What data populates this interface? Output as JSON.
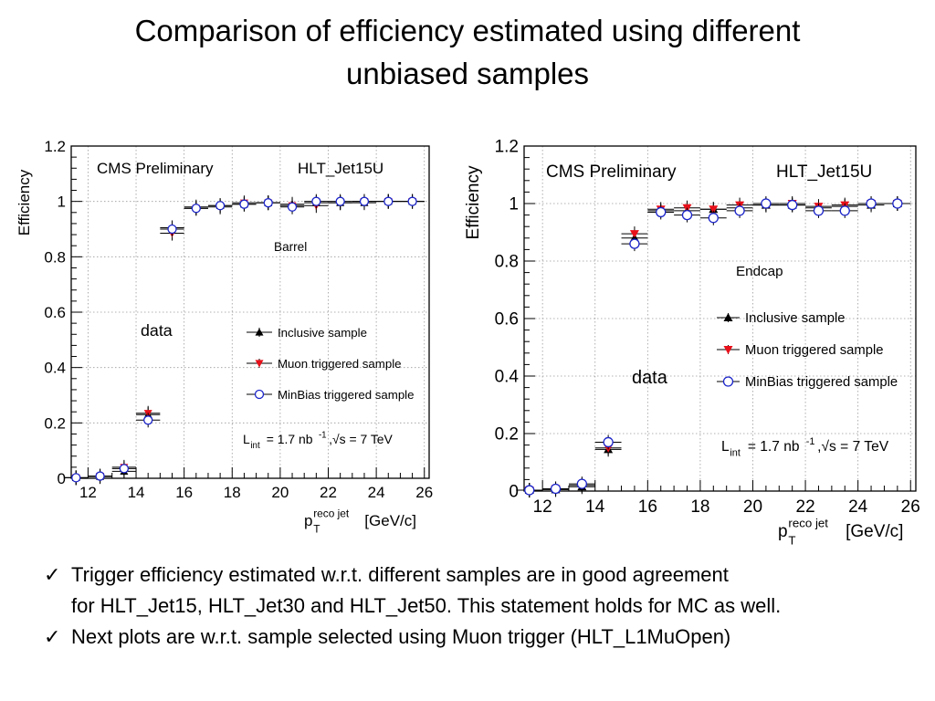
{
  "slide": {
    "title_line1": "Comparison of efficiency estimated using different",
    "title_line2": "unbiased samples",
    "bullets": [
      {
        "check": "✓",
        "lines": [
          "Trigger efficiency estimated w.r.t. different samples are in good agreement",
          "for HLT_Jet15, HLT_Jet30 and HLT_Jet50. This statement holds for MC as well."
        ]
      },
      {
        "check": "✓",
        "lines": [
          "Next plots are w.r.t. sample selected using Muon trigger (HLT_L1MuOpen)"
        ]
      }
    ]
  },
  "colors": {
    "inclusive": "#000000",
    "muon": "#e8101a",
    "minbias": "#1b24c9",
    "grid": "#9a9a9a"
  },
  "chart_data": [
    {
      "type": "scatter",
      "panel": "barrel",
      "ylabel": "Efficiency",
      "xlabel_main": "p",
      "xlabel_sub": "T",
      "xlabel_sup": "reco jet",
      "xlabel_unit": "[GeV/c]",
      "xlim": [
        11.3,
        26.2
      ],
      "ylim": [
        0,
        1.2
      ],
      "xticks": [
        12,
        14,
        16,
        18,
        20,
        22,
        24,
        26
      ],
      "yticks": [
        0,
        0.2,
        0.4,
        0.6,
        0.8,
        1,
        1.2
      ],
      "ytick_labels": [
        "0",
        "0.2",
        "0.4",
        "0.6",
        "0.8",
        "1",
        "1.2"
      ],
      "grid": true,
      "legend_position": "center-right",
      "annotations": {
        "cms": "CMS Preliminary",
        "trigger": "HLT_Jet15U",
        "region": "Barrel",
        "data": "data",
        "lumi_L": "L",
        "lumi_int": "int",
        "lumi_value": "= 1.7 nb",
        "lumi_exp": "-1",
        "lumi_energy": ",√s = 7 TeV"
      },
      "series": [
        {
          "name": "Inclusive sample",
          "marker": "triangle-up",
          "x": [
            11.5,
            12.5,
            13.5,
            14.5,
            15.5,
            16.5,
            17.5,
            18.5,
            19.5,
            20.5,
            21.5,
            22.5,
            23.5,
            24.5,
            25.5
          ],
          "y": [
            0.002,
            0.006,
            0.025,
            0.23,
            0.905,
            0.98,
            0.985,
            0.99,
            0.995,
            0.99,
            0.995,
            0.995,
            0.995,
            1.0,
            1.0
          ]
        },
        {
          "name": "Muon triggered sample",
          "marker": "triangle-down",
          "x": [
            11.5,
            12.5,
            13.5,
            14.5,
            15.5,
            16.5,
            17.5,
            18.5,
            19.5,
            20.5,
            21.5,
            22.5,
            23.5,
            24.5,
            25.5
          ],
          "y": [
            0.002,
            0.008,
            0.04,
            0.235,
            0.885,
            0.975,
            0.98,
            0.995,
            0.995,
            0.985,
            0.985,
            0.995,
            1.0,
            1.0,
            1.0
          ]
        },
        {
          "name": "MinBias triggered sample",
          "marker": "circle-open",
          "x": [
            11.5,
            12.5,
            13.5,
            14.5,
            15.5,
            16.5,
            17.5,
            18.5,
            19.5,
            20.5,
            21.5,
            22.5,
            23.5,
            24.5,
            25.5
          ],
          "y": [
            0.002,
            0.008,
            0.035,
            0.21,
            0.9,
            0.975,
            0.985,
            0.99,
            0.995,
            0.98,
            1.0,
            1.0,
            1.0,
            1.0,
            1.0
          ]
        }
      ]
    },
    {
      "type": "scatter",
      "panel": "endcap",
      "ylabel": "Efficiency",
      "xlabel_main": "p",
      "xlabel_sub": "T",
      "xlabel_sup": "reco jet",
      "xlabel_unit": "[GeV/c]",
      "xlim": [
        11.3,
        26.2
      ],
      "ylim": [
        0,
        1.2
      ],
      "xticks": [
        12,
        14,
        16,
        18,
        20,
        22,
        24,
        26
      ],
      "yticks": [
        0,
        0.2,
        0.4,
        0.6,
        0.8,
        1,
        1.2
      ],
      "ytick_labels": [
        "0",
        "0.2",
        "0.4",
        "0.6",
        "0.8",
        "1",
        "1.2"
      ],
      "grid": true,
      "legend_position": "center-right",
      "annotations": {
        "cms": "CMS Preliminary",
        "trigger": "HLT_Jet15U",
        "region": "Endcap",
        "data": "data",
        "lumi_L": "L",
        "lumi_int": "int",
        "lumi_value": "= 1.7 nb",
        "lumi_exp": "-1",
        "lumi_energy": ",√s = 7 TeV"
      },
      "series": [
        {
          "name": "Inclusive sample",
          "marker": "triangle-up",
          "x": [
            11.5,
            12.5,
            13.5,
            14.5,
            15.5,
            16.5,
            17.5,
            18.5,
            19.5,
            20.5,
            21.5,
            22.5,
            23.5,
            24.5,
            25.5
          ],
          "y": [
            0.003,
            0.005,
            0.015,
            0.145,
            0.88,
            0.975,
            0.975,
            0.98,
            0.985,
            0.995,
            0.995,
            0.985,
            0.99,
            0.995,
            1.0
          ]
        },
        {
          "name": "Muon triggered sample",
          "marker": "triangle-down",
          "x": [
            11.5,
            12.5,
            13.5,
            14.5,
            15.5,
            16.5,
            17.5,
            18.5,
            19.5,
            20.5,
            21.5,
            22.5,
            23.5,
            24.5,
            25.5
          ],
          "y": [
            0.003,
            0.008,
            0.02,
            0.15,
            0.895,
            0.98,
            0.985,
            0.98,
            0.995,
            0.995,
            1.0,
            0.99,
            0.995,
            1.0,
            1.0
          ]
        },
        {
          "name": "MinBias triggered sample",
          "marker": "circle-open",
          "x": [
            11.5,
            12.5,
            13.5,
            14.5,
            15.5,
            16.5,
            17.5,
            18.5,
            19.5,
            20.5,
            21.5,
            22.5,
            23.5,
            24.5,
            25.5
          ],
          "y": [
            0.003,
            0.008,
            0.025,
            0.17,
            0.86,
            0.97,
            0.96,
            0.95,
            0.975,
            1.0,
            0.995,
            0.975,
            0.975,
            1.0,
            1.0
          ]
        }
      ]
    }
  ]
}
